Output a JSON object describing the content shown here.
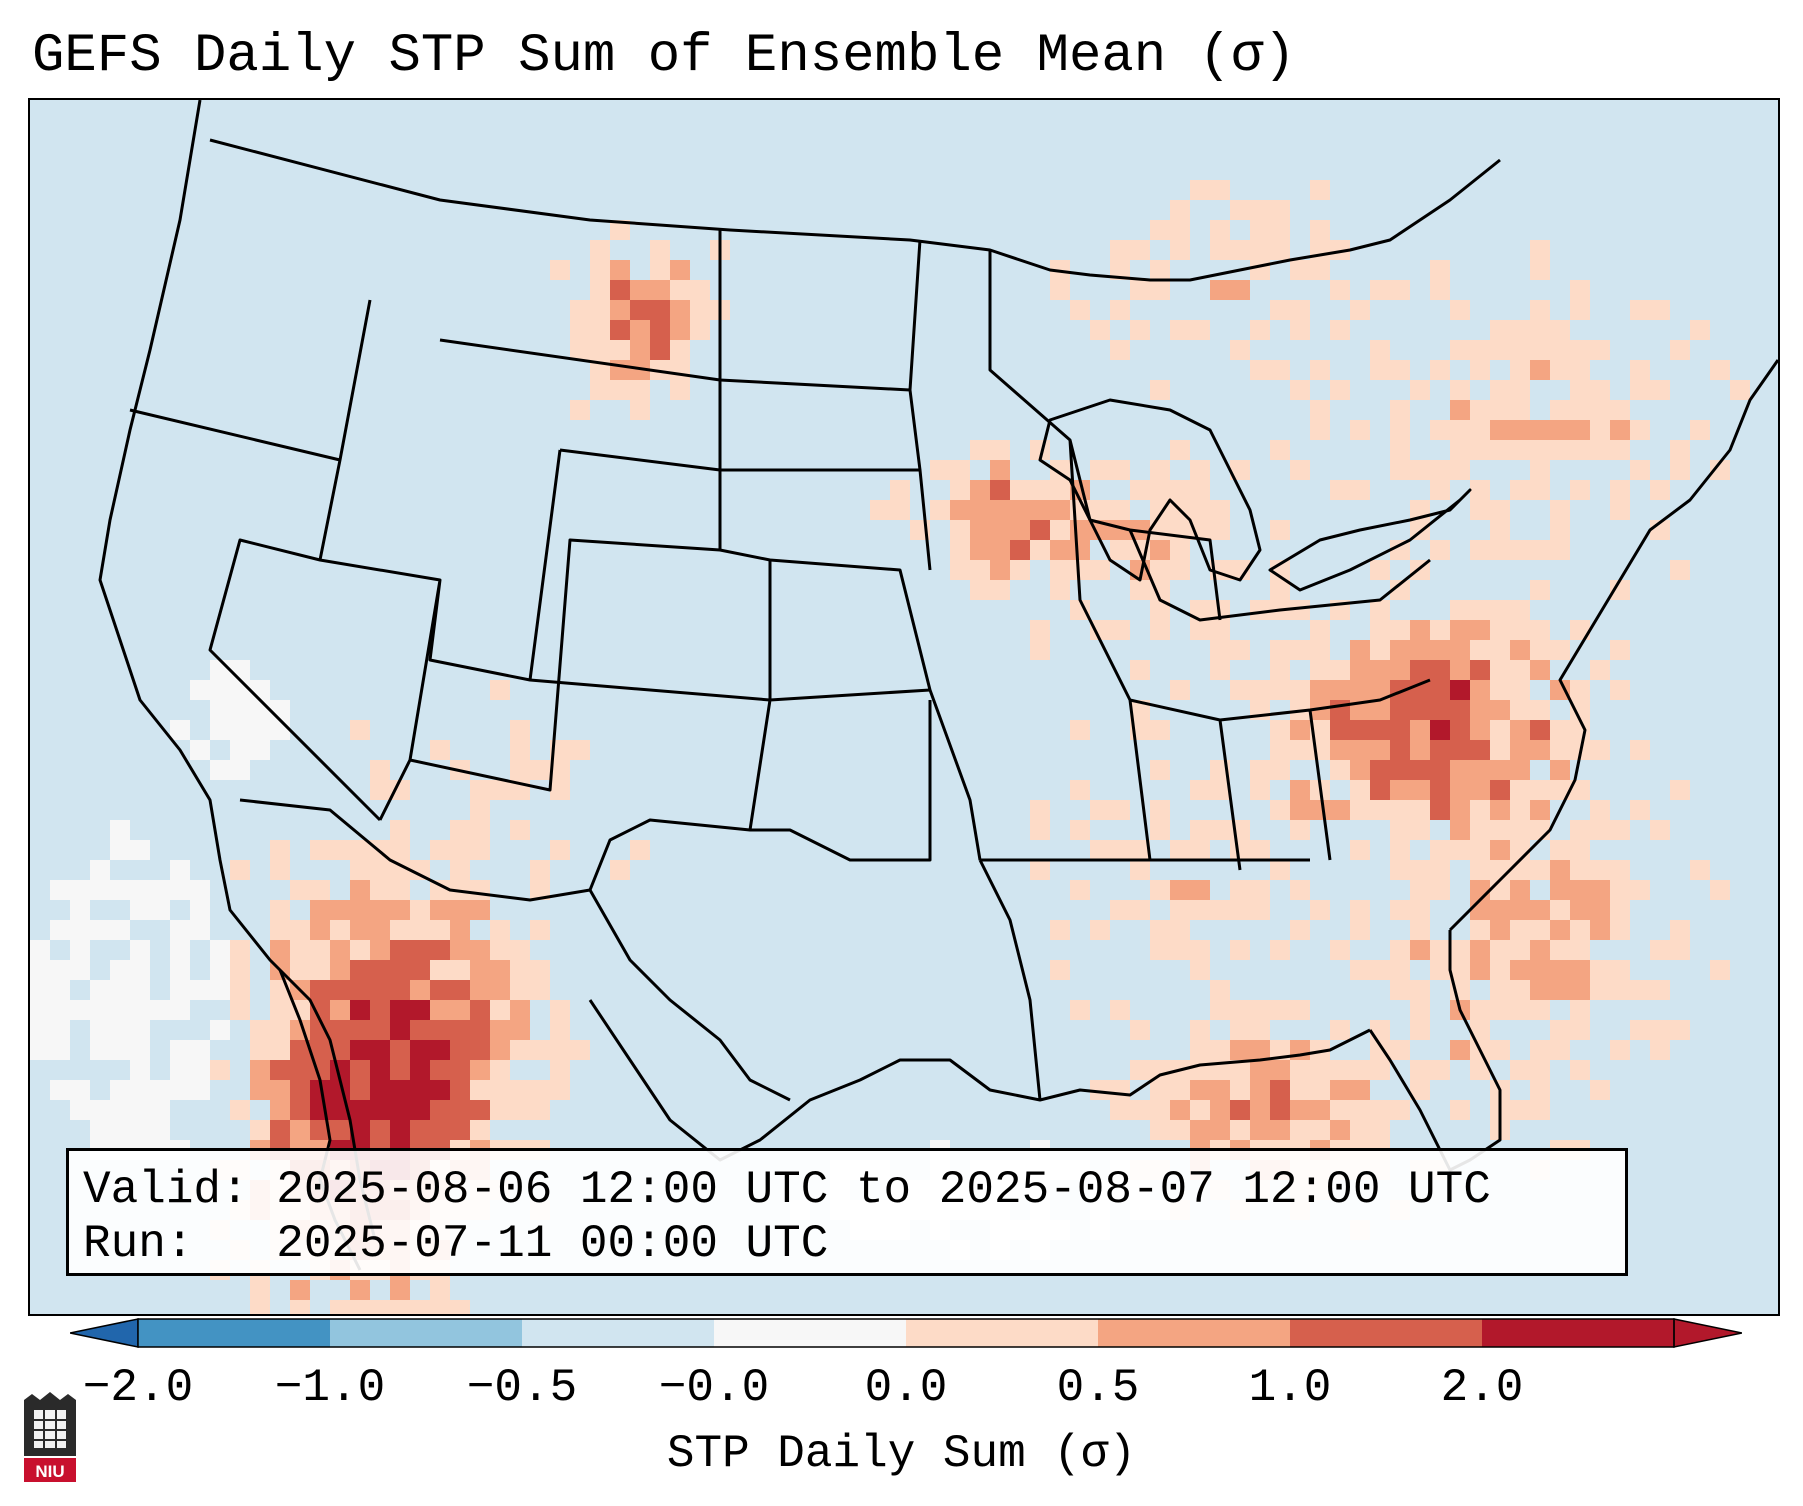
{
  "title": "GEFS Daily STP Sum of Ensemble Mean (σ)",
  "info": {
    "valid_label": "Valid:",
    "valid_value": "2025-08-06 12:00 UTC to 2025-08-07 12:00 UTC",
    "run_label": "Run:",
    "run_value": "2025-07-11 00:00 UTC"
  },
  "colorbar": {
    "label": "STP Daily Sum (σ)",
    "ticks": [
      "−2.0",
      "−1.0",
      "−0.5",
      "−0.0",
      "0.0",
      "0.5",
      "1.0",
      "2.0"
    ],
    "colors": [
      "#4393c3",
      "#92c5de",
      "#d1e5f0",
      "#f7f7f7",
      "#fddbc7",
      "#f4a582",
      "#d6604d",
      "#b2182b"
    ],
    "under_color": "#2166ac",
    "over_color": "#b2182b"
  },
  "logo": {
    "text": "NIU",
    "name": "Northern Illinois University"
  },
  "map": {
    "background_color": "#d1e5f0",
    "boundary_color": "#000000"
  }
}
